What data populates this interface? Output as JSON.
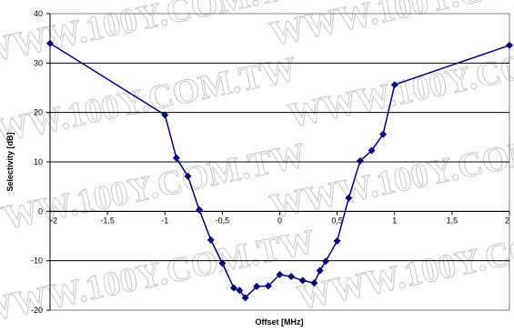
{
  "watermark": "WWW.100Y.COM.TW",
  "chart_data": {
    "type": "scatter",
    "title": "",
    "xlabel": "Offset [MHz]",
    "ylabel": "Selectivity [dB]",
    "xlim": [
      -2,
      2
    ],
    "ylim": [
      -20,
      40
    ],
    "xticks": [
      -2,
      -1.5,
      -1,
      -0.5,
      0,
      0.5,
      1,
      1.5,
      2
    ],
    "xtick_labels": [
      "-2",
      "-1,5",
      "-1",
      "-0,5",
      "0",
      "0,5",
      "1",
      "1,5",
      "2"
    ],
    "yticks": [
      -20,
      -10,
      0,
      10,
      20,
      30,
      40
    ],
    "ytick_labels": [
      "-20",
      "-10",
      "0",
      "10",
      "20",
      "30",
      "40"
    ],
    "grid": "horizontal",
    "legend": "none",
    "series": [
      {
        "color": "#000080",
        "marker": "diamond",
        "x": [
          -2,
          -1,
          -0.9,
          -0.8,
          -0.7,
          -0.6,
          -0.5,
          -0.4,
          -0.35,
          -0.3,
          -0.2,
          -0.1,
          0,
          0.1,
          0.2,
          0.3,
          0.35,
          0.4,
          0.5,
          0.6,
          0.7,
          0.8,
          0.9,
          1,
          2
        ],
        "y": [
          34,
          19.5,
          10.8,
          7.1,
          0.3,
          -5.8,
          -10.5,
          -15.5,
          -16.0,
          -17.5,
          -15.2,
          -15.1,
          -12.8,
          -13.2,
          -14.0,
          -14.5,
          -12.0,
          -10.1,
          -6.0,
          2.7,
          10.2,
          12.3,
          15.6,
          25.6,
          33.6
        ]
      }
    ]
  }
}
